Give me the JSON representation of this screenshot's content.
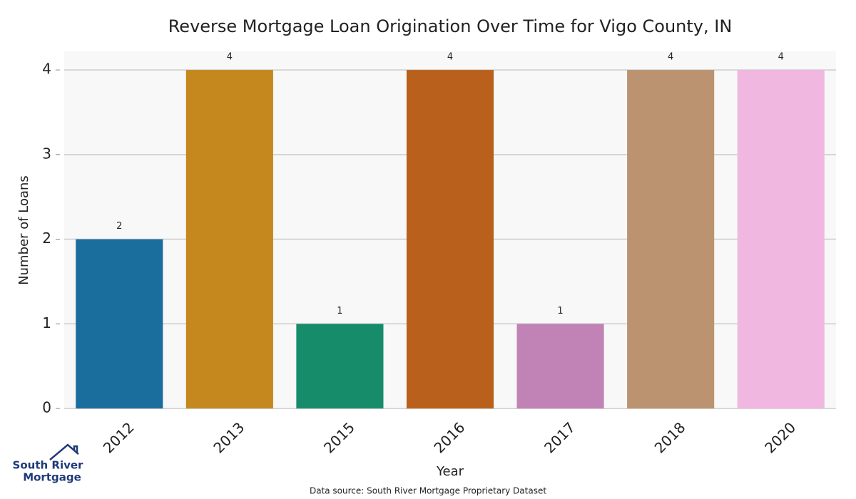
{
  "chart_data": {
    "type": "bar",
    "title": "Reverse Mortgage Loan Origination Over Time for Vigo County, IN",
    "x_label": "Year",
    "y_label": "Number of Loans",
    "categories": [
      "2012",
      "2013",
      "2015",
      "2016",
      "2017",
      "2018",
      "2020"
    ],
    "values": [
      2,
      4,
      1,
      4,
      1,
      4,
      4
    ],
    "colors": [
      "#1a6e9e",
      "#c4881e",
      "#178c6a",
      "#b8601c",
      "#c183b5",
      "#bb9370",
      "#f0b8e0"
    ],
    "ylim": [
      0,
      4.22
    ],
    "yticks": [
      0,
      1,
      2,
      3,
      4
    ],
    "grid": true,
    "source": "Data source: South River Mortgage Proprietary Dataset",
    "logo": [
      "South River",
      "Mortgage"
    ]
  }
}
